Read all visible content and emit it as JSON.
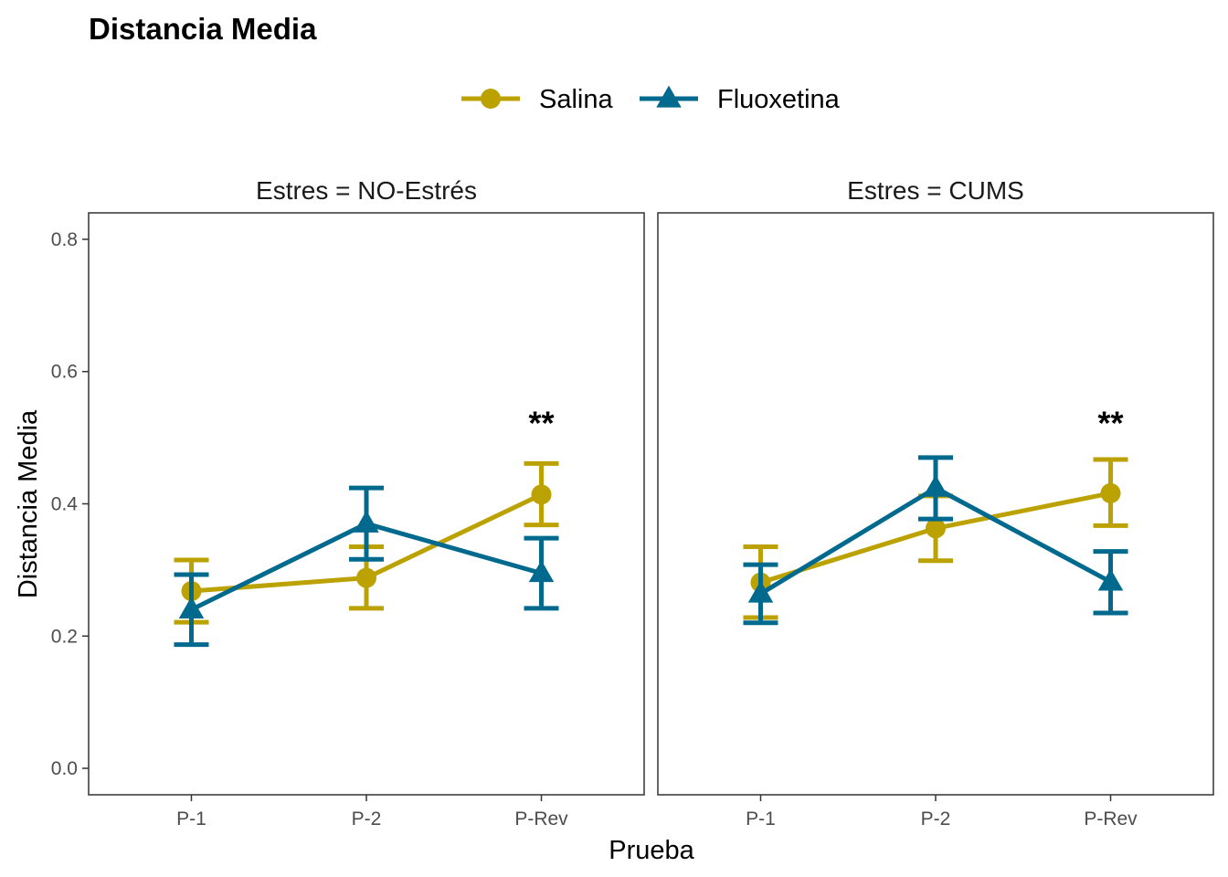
{
  "chart_data": {
    "type": "line",
    "title": "Distancia Media",
    "xlabel": "Prueba",
    "ylabel": "Distancia Media",
    "categories": [
      "P-1",
      "P-2",
      "P-Rev"
    ],
    "ylim": [
      -0.04,
      0.84
    ],
    "yticks": [
      0.0,
      0.2,
      0.4,
      0.6,
      0.8
    ],
    "ytick_labels": [
      "0.0",
      "0.2",
      "0.4",
      "0.6",
      "0.8"
    ],
    "grid": false,
    "legend": {
      "position": "top",
      "entries": [
        {
          "name": "Salina",
          "color": "#bca200",
          "marker": "circle"
        },
        {
          "name": "Fluoxetina",
          "color": "#006a8e",
          "marker": "triangle"
        }
      ]
    },
    "panels": [
      {
        "label": "Estres = NO-Estrés",
        "series": [
          {
            "name": "Salina",
            "values": [
              0.268,
              0.288,
              0.414
            ],
            "err_low": [
              0.221,
              0.242,
              0.368
            ],
            "err_high": [
              0.315,
              0.335,
              0.461
            ]
          },
          {
            "name": "Fluoxetina",
            "values": [
              0.24,
              0.37,
              0.295
            ],
            "err_low": [
              0.187,
              0.316,
              0.242
            ],
            "err_high": [
              0.293,
              0.424,
              0.348
            ]
          }
        ],
        "annotations": [
          {
            "category": "P-Rev",
            "text": "**",
            "y": 0.505
          }
        ]
      },
      {
        "label": "Estres = CUMS",
        "series": [
          {
            "name": "Salina",
            "values": [
              0.281,
              0.363,
              0.416
            ],
            "err_low": [
              0.228,
              0.314,
              0.367
            ],
            "err_high": [
              0.335,
              0.412,
              0.467
            ]
          },
          {
            "name": "Fluoxetina",
            "values": [
              0.264,
              0.424,
              0.282
            ],
            "err_low": [
              0.22,
              0.377,
              0.235
            ],
            "err_high": [
              0.308,
              0.47,
              0.328
            ]
          }
        ],
        "annotations": [
          {
            "category": "P-Rev",
            "text": "**",
            "y": 0.505
          }
        ]
      }
    ]
  }
}
